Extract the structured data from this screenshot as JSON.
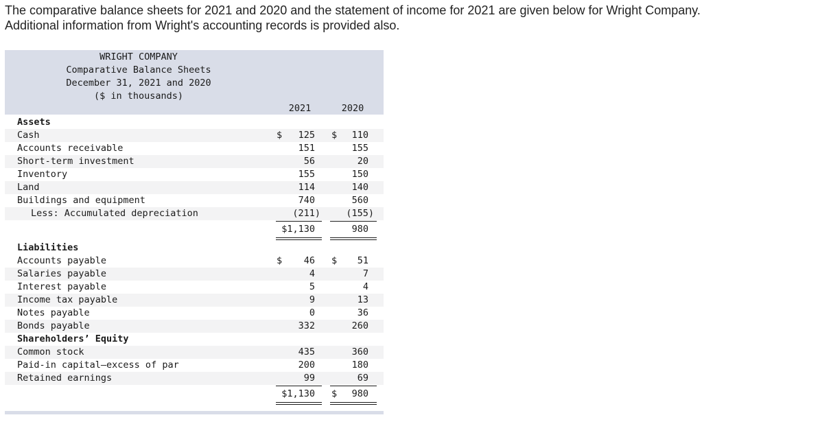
{
  "intro": {
    "line1": "The comparative balance sheets for 2021 and 2020 and the statement of income for 2021 are given below for Wright Company.",
    "line2": "Additional information from Wright's accounting records is provided also."
  },
  "statement": {
    "company": "WRIGHT COMPANY",
    "title": "Comparative Balance Sheets",
    "date": "December 31, 2021 and 2020",
    "units": "($ in thousands)",
    "col_2021": "2021",
    "col_2020": "2020",
    "assets_heading": "Assets",
    "assets": [
      {
        "label": "Cash",
        "cur1": "$",
        "v2021": "125",
        "cur2": "$",
        "v2020": "110"
      },
      {
        "label": "Accounts receivable",
        "cur1": "",
        "v2021": "151",
        "cur2": "",
        "v2020": "155"
      },
      {
        "label": "Short-term investment",
        "cur1": "",
        "v2021": "56",
        "cur2": "",
        "v2020": "20"
      },
      {
        "label": "Inventory",
        "cur1": "",
        "v2021": "155",
        "cur2": "",
        "v2020": "150"
      },
      {
        "label": "Land",
        "cur1": "",
        "v2021": "114",
        "cur2": "",
        "v2020": "140"
      },
      {
        "label": "Buildings and equipment",
        "cur1": "",
        "v2021": "740",
        "cur2": "",
        "v2020": "560"
      },
      {
        "label": "Less: Accumulated depreciation",
        "cur1": "",
        "v2021": "(211)",
        "cur2": "",
        "v2020": "(155)"
      }
    ],
    "assets_total": {
      "v2021": "$1,130",
      "v2020": "980"
    },
    "liabilities_heading": "Liabilities",
    "liabilities": [
      {
        "label": "Accounts payable",
        "cur1": "$",
        "v2021": "46",
        "cur2": "$",
        "v2020": "51"
      },
      {
        "label": "Salaries payable",
        "cur1": "",
        "v2021": "4",
        "cur2": "",
        "v2020": "7"
      },
      {
        "label": "Interest payable",
        "cur1": "",
        "v2021": "5",
        "cur2": "",
        "v2020": "4"
      },
      {
        "label": "Income tax payable",
        "cur1": "",
        "v2021": "9",
        "cur2": "",
        "v2020": "13"
      },
      {
        "label": "Notes payable",
        "cur1": "",
        "v2021": "0",
        "cur2": "",
        "v2020": "36"
      },
      {
        "label": "Bonds payable",
        "cur1": "",
        "v2021": "332",
        "cur2": "",
        "v2020": "260"
      }
    ],
    "equity_heading": "Shareholders’ Equity",
    "equity": [
      {
        "label": "Common stock",
        "cur1": "",
        "v2021": "435",
        "cur2": "",
        "v2020": "360"
      },
      {
        "label": "Paid-in capital–excess of par",
        "cur1": "",
        "v2021": "200",
        "cur2": "",
        "v2020": "180"
      },
      {
        "label": "Retained earnings",
        "cur1": "",
        "v2021": "99",
        "cur2": "",
        "v2020": "69"
      }
    ],
    "liab_total": {
      "v2021": "$1,130",
      "cur2": "$",
      "v2020": "980"
    }
  }
}
